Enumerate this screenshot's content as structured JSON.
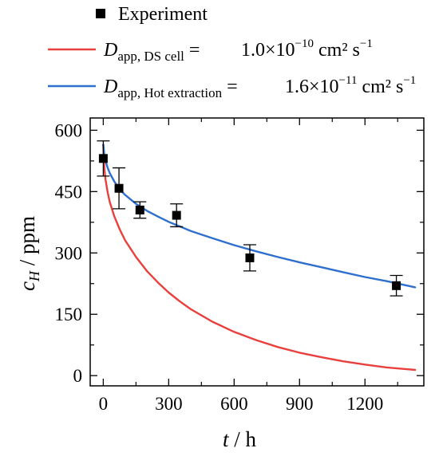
{
  "chart_data": {
    "type": "scatter",
    "title": "",
    "xlabel": {
      "var": "t",
      "unit": " / h"
    },
    "ylabel": {
      "var": "c",
      "sub": "H",
      "unit": " / ppm"
    },
    "xlim": [
      -60,
      1470
    ],
    "ylim": [
      -25,
      630
    ],
    "xticks": [
      0,
      300,
      600,
      900,
      1200
    ],
    "yticks": [
      0,
      150,
      300,
      450,
      600
    ],
    "tick_labels_x": [
      "0",
      "300",
      "600",
      "900",
      "1200"
    ],
    "tick_labels_y": [
      "0",
      "150",
      "300",
      "450",
      "600"
    ],
    "grid": false,
    "legend_position": "top",
    "legend": [
      {
        "kind": "marker",
        "label": "Experiment"
      },
      {
        "kind": "line",
        "color": "#e8403c",
        "label_main": "D",
        "label_sub": "app, DS cell",
        "label_eq": " =",
        "value": "1.0×10",
        "exp": "−10",
        "unit": " cm² s",
        "unit_exp": "−1"
      },
      {
        "kind": "line",
        "color": "#2f6fce",
        "label_main": "D",
        "label_sub": "app, Hot extraction",
        "label_eq": " =",
        "value": "1.6×10",
        "exp": "−11",
        "unit": " cm² s",
        "unit_exp": "−1"
      }
    ],
    "series": [
      {
        "kind": "scatter",
        "marker": "square",
        "color": "#000000",
        "points": [
          {
            "x": 0,
            "y": 531,
            "err": 43
          },
          {
            "x": 72,
            "y": 458,
            "err": 50
          },
          {
            "x": 168,
            "y": 405,
            "err": 20
          },
          {
            "x": 336,
            "y": 392,
            "err": 28
          },
          {
            "x": 672,
            "y": 288,
            "err": 32
          },
          {
            "x": 1344,
            "y": 220,
            "err": 25
          }
        ]
      },
      {
        "kind": "line",
        "color": "#e8403c",
        "x": [
          0,
          5,
          10,
          20,
          30,
          50,
          75,
          100,
          150,
          200,
          250,
          300,
          350,
          400,
          500,
          600,
          700,
          800,
          900,
          1000,
          1100,
          1200,
          1300,
          1430
        ],
        "y": [
          565,
          505,
          481,
          448,
          424,
          390,
          358,
          331,
          290,
          256,
          228,
          203,
          182,
          163,
          132,
          107,
          87,
          70,
          56,
          45,
          35,
          27,
          20,
          14
        ]
      },
      {
        "kind": "line",
        "color": "#2f6fce",
        "x": [
          0,
          5,
          10,
          20,
          30,
          50,
          75,
          100,
          150,
          200,
          250,
          300,
          350,
          400,
          500,
          600,
          700,
          800,
          900,
          1000,
          1100,
          1200,
          1300,
          1430
        ],
        "y": [
          565,
          538,
          526,
          508,
          495,
          475,
          456,
          442,
          420,
          403,
          389,
          376,
          365,
          354,
          336,
          319,
          304,
          290,
          277,
          265,
          253,
          241,
          231,
          216
        ]
      }
    ]
  }
}
